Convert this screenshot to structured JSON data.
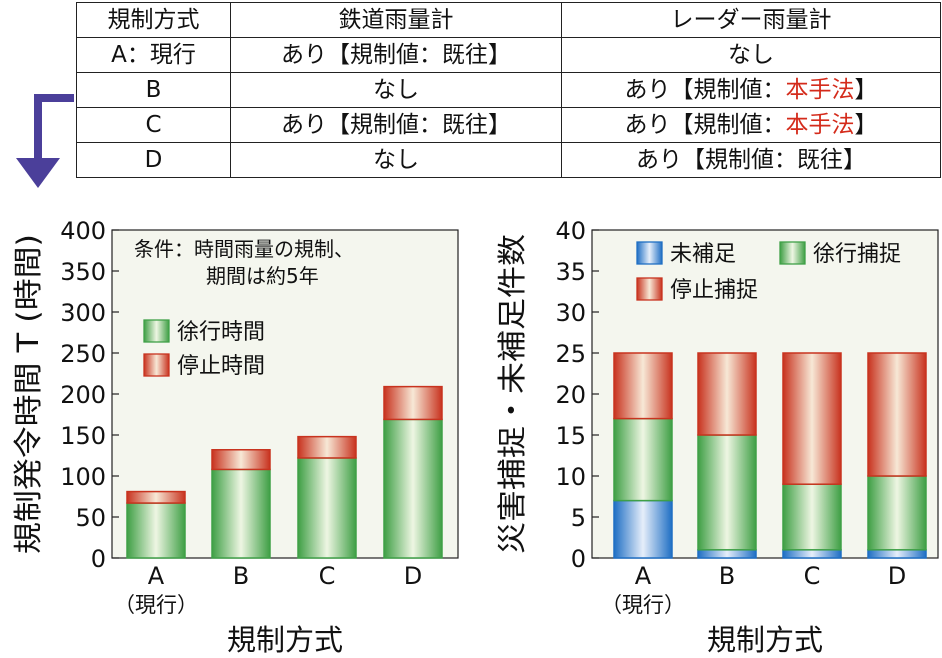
{
  "table": {
    "headers": [
      "規制方式",
      "鉄道雨量計",
      "レーダー雨量計"
    ],
    "rows": [
      {
        "method": "A：現行",
        "rail": "あり【規制値：既往】",
        "radar_pre": "なし",
        "radar_red": "",
        "radar_post": ""
      },
      {
        "method": "B",
        "rail": "なし",
        "radar_pre": "あり【規制値：",
        "radar_red": "本手法",
        "radar_post": "】"
      },
      {
        "method": "C",
        "rail": "あり【規制値：既往】",
        "radar_pre": "あり【規制値：",
        "radar_red": "本手法",
        "radar_post": "】"
      },
      {
        "method": "D",
        "rail": "なし",
        "radar_pre": "あり【規制値：既往】",
        "radar_red": "",
        "radar_post": ""
      }
    ]
  },
  "colors": {
    "green": "#3fa047",
    "red": "#c8331f",
    "blue": "#1f6fc4",
    "arrow": "#4b3f9a"
  },
  "chart_data": [
    {
      "type": "bar",
      "stacked": true,
      "categories": [
        "A",
        "B",
        "C",
        "D"
      ],
      "category_sub": [
        "（現行）",
        "",
        "",
        ""
      ],
      "series": [
        {
          "name": "徐行時間",
          "values": [
            67,
            108,
            122,
            169
          ],
          "color": "green"
        },
        {
          "name": "停止時間",
          "values": [
            14,
            24,
            26,
            40
          ],
          "color": "red"
        }
      ],
      "ylim": [
        0,
        400
      ],
      "yticks": [
        0,
        50,
        100,
        150,
        200,
        250,
        300,
        350,
        400
      ],
      "ylabel": "規制発令時間 T (時間)",
      "xlabel": "規制方式",
      "annotation": [
        "条件：時間雨量の規制、",
        "期間は約5年"
      ]
    },
    {
      "type": "bar",
      "stacked": true,
      "categories": [
        "A",
        "B",
        "C",
        "D"
      ],
      "category_sub": [
        "（現行）",
        "",
        "",
        ""
      ],
      "series": [
        {
          "name": "未補足",
          "values": [
            7,
            1,
            1,
            1
          ],
          "color": "blue"
        },
        {
          "name": "徐行捕捉",
          "values": [
            10,
            14,
            8,
            9
          ],
          "color": "green"
        },
        {
          "name": "停止捕捉",
          "values": [
            8,
            10,
            16,
            15
          ],
          "color": "red"
        }
      ],
      "ylim": [
        0,
        40
      ],
      "yticks": [
        0,
        5,
        10,
        15,
        20,
        25,
        30,
        35,
        40
      ],
      "ylabel": "災害捕捉・未補足件数",
      "xlabel": "規制方式"
    }
  ]
}
